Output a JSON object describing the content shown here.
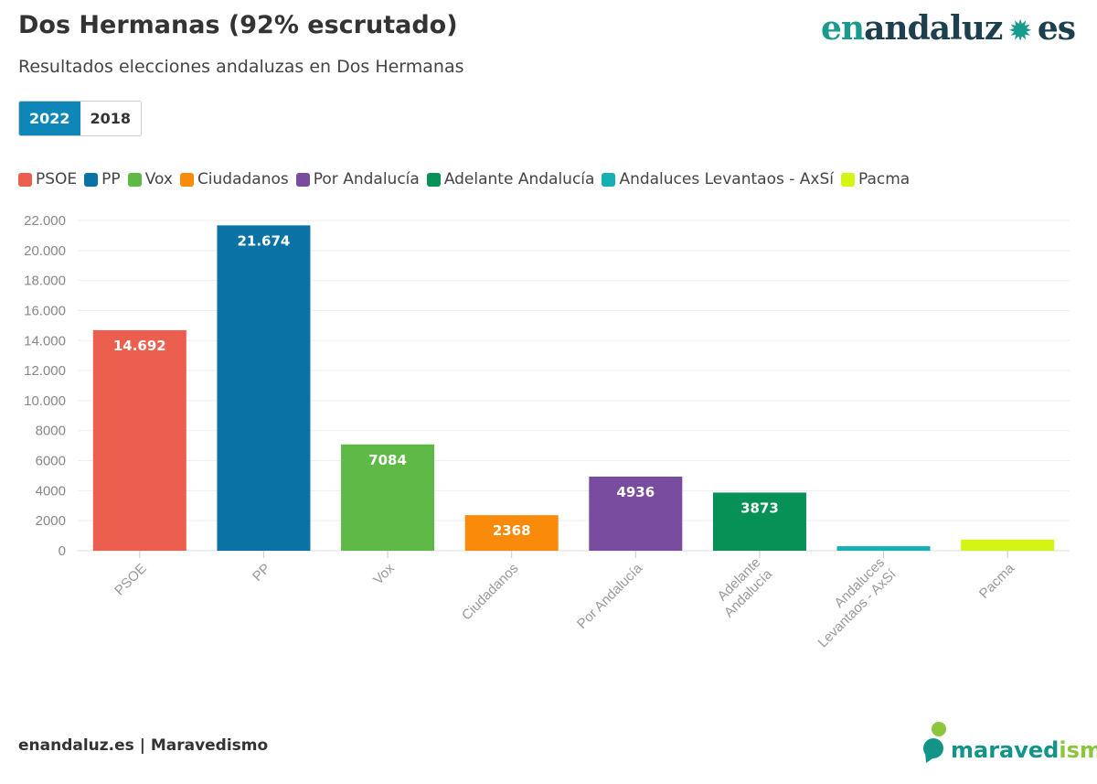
{
  "header": {
    "title": "Dos Hermanas (92% escrutado)",
    "subtitle": "Resultados elecciones andaluzas en Dos Hermanas",
    "logo": "enandaluz.es",
    "logo_parts": {
      "a": "en",
      "b": "andaluz",
      "c": "es"
    }
  },
  "tabs": [
    {
      "label": "2022",
      "active": true
    },
    {
      "label": "2018",
      "active": false
    }
  ],
  "footer": {
    "source": "enandaluz.es | Maravedismo",
    "logo": "maravedismo",
    "logo_parts": {
      "a": "maraved",
      "b": "ismo"
    }
  },
  "chart_data": {
    "type": "bar",
    "categories": [
      "PSOE",
      "PP",
      "Vox",
      "Ciudadanos",
      "Por Andalucía",
      "Adelante Andalucía",
      "Andaluces Levantaos - AxSí",
      "Pacma"
    ],
    "axis_labels": [
      [
        "PSOE"
      ],
      [
        "PP"
      ],
      [
        "Vox"
      ],
      [
        "Ciudadanos"
      ],
      [
        "Por Andalucía"
      ],
      [
        "Adelante",
        "Andalucía"
      ],
      [
        "Andaluces",
        "Levantaos - AxSí"
      ],
      [
        "Pacma"
      ]
    ],
    "values": [
      14692,
      21674,
      7084,
      2368,
      4936,
      3873,
      300,
      740
    ],
    "data_labels": [
      "14.692",
      "21.674",
      "7084",
      "2368",
      "4936",
      "3873",
      "",
      ""
    ],
    "colors": [
      "#ec5f4f",
      "#0a72a4",
      "#5fb947",
      "#f98a0a",
      "#7a4c9f",
      "#079156",
      "#14b0b3",
      "#d4f514"
    ],
    "ylim": [
      0,
      22000
    ],
    "yticks": [
      0,
      2000,
      4000,
      6000,
      8000,
      10000,
      12000,
      14000,
      16000,
      18000,
      20000,
      22000
    ],
    "ytick_labels": [
      "0",
      "2000",
      "4000",
      "6000",
      "8000",
      "10.000",
      "12.000",
      "14.000",
      "16.000",
      "18.000",
      "20.000",
      "22.000"
    ],
    "grid": true,
    "legend_position": "top-left"
  }
}
